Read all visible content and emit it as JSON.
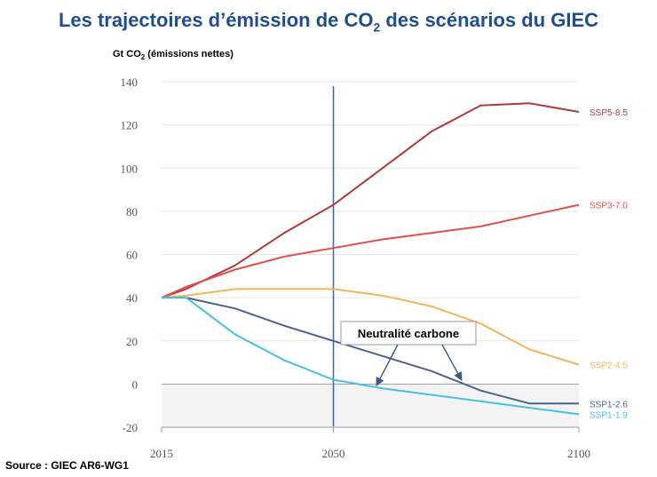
{
  "title": {
    "prefix": "Les trajectoires d’émission de CO",
    "sub": "2",
    "suffix": " des scénarios du GIEC"
  },
  "ylabel": {
    "prefix": "Gt CO",
    "sub": "2",
    "suffix": " (émissions nettes)"
  },
  "source": "Source : GIEC AR6-WG1",
  "chart_data": {
    "type": "line",
    "xlim": [
      2015,
      2100
    ],
    "ylim": [
      -20,
      140
    ],
    "x_ticks": [
      "2015",
      "2050",
      "2100"
    ],
    "y_ticks": [
      "140",
      "120",
      "100",
      "80",
      "60",
      "40",
      "20",
      "0",
      "-20"
    ],
    "grid": true,
    "reference_line": {
      "x": 2050
    },
    "annotation": {
      "text": "Neutralité carbone"
    },
    "series": [
      {
        "name": "SSP5-8.5",
        "color": "#b03a3a",
        "x": [
          2015,
          2020,
          2030,
          2040,
          2050,
          2060,
          2070,
          2080,
          2090,
          2100
        ],
        "y": [
          40,
          44,
          55,
          70,
          83,
          100,
          117,
          129,
          130,
          126
        ]
      },
      {
        "name": "SSP3-7.0",
        "color": "#e0504b",
        "x": [
          2015,
          2020,
          2030,
          2040,
          2050,
          2060,
          2070,
          2080,
          2090,
          2100
        ],
        "y": [
          40,
          45,
          53,
          59,
          63,
          67,
          70,
          73,
          78,
          83
        ]
      },
      {
        "name": "SSP2-4.5",
        "color": "#f2b45a",
        "x": [
          2015,
          2020,
          2030,
          2040,
          2050,
          2060,
          2070,
          2080,
          2090,
          2100
        ],
        "y": [
          40,
          41,
          44,
          44,
          44,
          41,
          36,
          28,
          16,
          9
        ]
      },
      {
        "name": "SSP1-2.6",
        "color": "#4a6390",
        "x": [
          2015,
          2020,
          2030,
          2040,
          2050,
          2060,
          2070,
          2080,
          2090,
          2100
        ],
        "y": [
          40,
          40,
          35,
          27,
          20,
          13,
          6,
          -3,
          -9,
          -9
        ]
      },
      {
        "name": "SSP1-1.9",
        "color": "#44c0e0",
        "x": [
          2015,
          2020,
          2030,
          2040,
          2050,
          2060,
          2070,
          2080,
          2090,
          2100
        ],
        "y": [
          40,
          40,
          23,
          11,
          2,
          -2,
          -5,
          -8,
          -11,
          -14
        ]
      }
    ]
  }
}
